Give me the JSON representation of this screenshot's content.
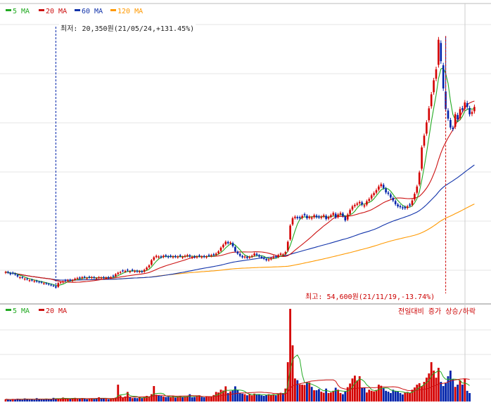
{
  "chart_data": [
    {
      "type": "candlestick",
      "panel": "price",
      "legend": [
        {
          "label": "5 MA",
          "color": "#22aa22"
        },
        {
          "label": "20 MA",
          "color": "#cc1111"
        },
        {
          "label": "60 MA",
          "color": "#1133aa"
        },
        {
          "label": "120 MA",
          "color": "#ff9900"
        }
      ],
      "annotations": {
        "low": "최저: 20,350원(21/05/24,+131.45%)",
        "high": "최고: 54,600원(21/11/19,-13.74%)"
      },
      "low_value": 20350,
      "high_value": 54600,
      "low_index": 21,
      "high_index": 184,
      "close": [
        22600,
        22500,
        22300,
        22400,
        22250,
        22000,
        21900,
        21800,
        21700,
        21600,
        21500,
        21450,
        21400,
        21300,
        21200,
        21150,
        21100,
        21000,
        20900,
        20800,
        20700,
        20500,
        21100,
        21200,
        21300,
        21400,
        21500,
        21450,
        21500,
        21700,
        21800,
        21750,
        21900,
        21850,
        21800,
        21850,
        21900,
        21800,
        21750,
        21900,
        21850,
        21800,
        21850,
        21800,
        21900,
        22000,
        22300,
        22500,
        22600,
        22700,
        22750,
        22800,
        22700,
        22800,
        22750,
        22650,
        22700,
        22600,
        22900,
        23200,
        23500,
        24200,
        24600,
        24800,
        24700,
        24600,
        24800,
        24750,
        24600,
        24700,
        24700,
        24650,
        24700,
        24750,
        24650,
        24800,
        24900,
        24700,
        24650,
        24600,
        24700,
        24750,
        24700,
        24650,
        24700,
        24800,
        24900,
        24900,
        25100,
        25400,
        25900,
        26300,
        26700,
        26500,
        26600,
        26100,
        25400,
        25100,
        24800,
        24600,
        24700,
        24500,
        24650,
        24800,
        25100,
        24900,
        24700,
        24550,
        24400,
        24200,
        24300,
        24500,
        24700,
        24600,
        24900,
        25100,
        25000,
        25300,
        26700,
        28900,
        29900,
        30100,
        29900,
        29900,
        30200,
        30300,
        29900,
        30100,
        30000,
        30300,
        30050,
        30000,
        30100,
        30300,
        29800,
        30050,
        30300,
        30600,
        30000,
        30400,
        30600,
        30200,
        29600,
        30400,
        31000,
        31500,
        31700,
        31900,
        32100,
        31750,
        31650,
        32200,
        32500,
        33000,
        33300,
        33700,
        34200,
        34500,
        34000,
        33400,
        33200,
        32700,
        32300,
        31800,
        31500,
        31400,
        31250,
        31250,
        31500,
        31600,
        32300,
        33200,
        34200,
        36100,
        39500,
        41100,
        42900,
        44800,
        46700,
        48600,
        50100,
        54100,
        51200,
        47500,
        44700,
        43400,
        42200,
        42000,
        44000,
        43300,
        44700,
        44600,
        45600,
        45000,
        44000,
        44300,
        45000
      ],
      "ma": [
        {
          "name": "5 MA",
          "color": "#22aa22"
        },
        {
          "name": "20 MA",
          "color": "#cc1111"
        },
        {
          "name": "60 MA",
          "color": "#1133aa"
        },
        {
          "name": "120 MA",
          "color": "#ff9900"
        }
      ],
      "colors": {
        "up": "#d40000",
        "down": "#0022aa"
      }
    },
    {
      "type": "bar",
      "panel": "volume",
      "legend": [
        {
          "label": "5 MA",
          "color": "#22aa22"
        },
        {
          "label": "20 MA",
          "color": "#cc1111"
        }
      ],
      "caption": "전일대비 증가 상승/하락",
      "peak_index": 119,
      "volume": [
        0.8,
        0.7,
        0.6,
        0.9,
        0.7,
        1.0,
        0.8,
        0.6,
        1.1,
        0.9,
        0.7,
        0.8,
        0.6,
        1.2,
        0.9,
        0.8,
        0.7,
        1.0,
        0.9,
        0.8,
        1.3,
        1.1,
        1.0,
        0.9,
        1.4,
        1.2,
        1.0,
        0.9,
        1.1,
        1.3,
        1.0,
        0.9,
        1.2,
        1.0,
        0.8,
        1.1,
        1.0,
        0.9,
        1.2,
        1.5,
        1.1,
        1.0,
        0.9,
        0.8,
        1.0,
        1.2,
        1.4,
        6.0,
        2.1,
        1.5,
        1.8,
        3.4,
        1.6,
        1.2,
        1.3,
        1.2,
        1.5,
        1.2,
        1.6,
        2.0,
        1.8,
        2.6,
        5.5,
        2.4,
        2.2,
        2.0,
        1.8,
        1.6,
        1.7,
        1.5,
        1.9,
        1.4,
        1.6,
        2.0,
        1.5,
        1.7,
        1.8,
        2.6,
        1.5,
        1.6,
        1.9,
        2.2,
        1.6,
        1.5,
        1.7,
        1.8,
        1.8,
        2.3,
        3.4,
        3.2,
        4.2,
        3.9,
        5.4,
        3.0,
        3.6,
        4.1,
        5.4,
        4.2,
        3.0,
        2.8,
        2.6,
        2.2,
        2.6,
        2.2,
        2.8,
        2.6,
        2.4,
        2.2,
        2.0,
        2.3,
        2.6,
        2.4,
        2.6,
        2.2,
        2.9,
        3.1,
        3.0,
        4.6,
        14.0,
        33.0,
        20.0,
        8.2,
        7.6,
        6.1,
        6.0,
        5.9,
        7.0,
        6.8,
        5.2,
        4.0,
        4.0,
        4.4,
        3.5,
        3.1,
        4.6,
        3.0,
        3.2,
        3.8,
        4.9,
        4.2,
        3.0,
        2.6,
        3.5,
        5.1,
        6.4,
        8.2,
        9.2,
        7.5,
        9.0,
        4.8,
        5.0,
        3.2,
        4.2,
        3.8,
        3.6,
        4.1,
        6.0,
        5.6,
        4.8,
        3.8,
        3.5,
        3.0,
        4.2,
        3.8,
        3.6,
        3.0,
        2.5,
        3.2,
        3.4,
        3.0,
        4.2,
        5.0,
        6.0,
        6.5,
        5.5,
        7.0,
        8.5,
        10.0,
        14.0,
        11.0,
        8.5,
        12.0,
        7.0,
        5.5,
        6.5,
        9.0,
        11.0,
        8.0,
        5.2,
        6.0,
        7.5,
        6.0,
        8.0,
        3.8,
        3.0
      ]
    }
  ]
}
